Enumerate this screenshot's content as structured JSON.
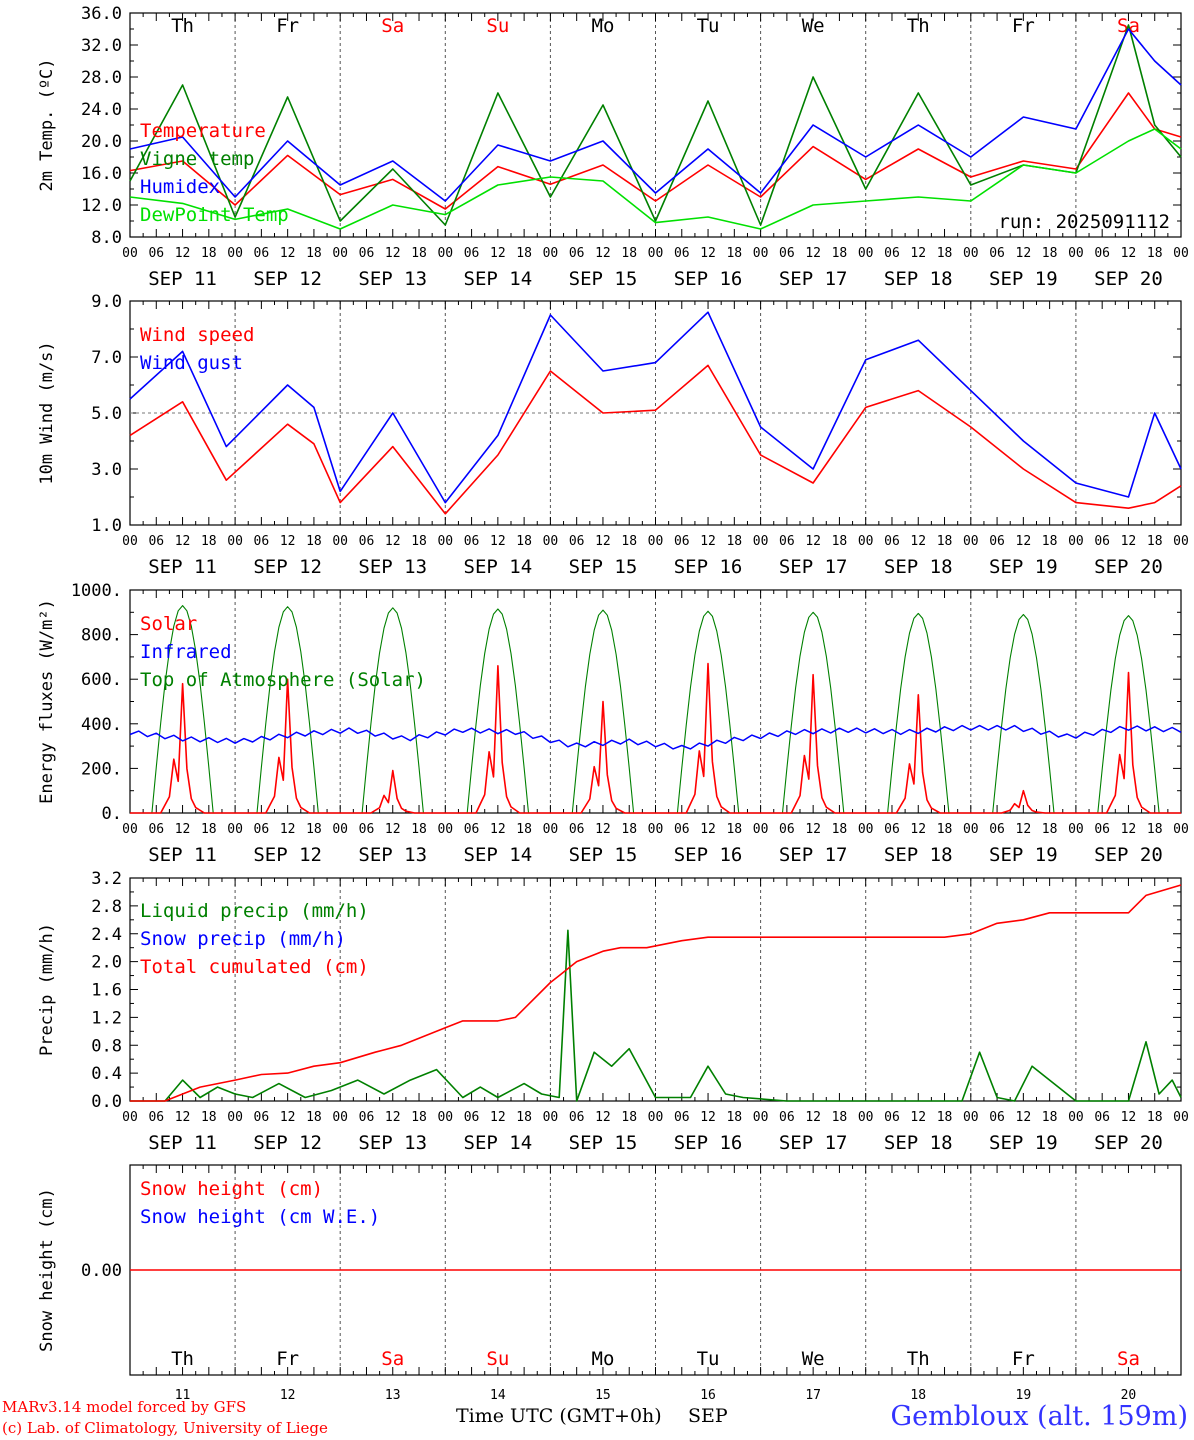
{
  "footer": {
    "model": "MARv3.14 model forced by GFS",
    "credit": "(c) Lab. of Climatology, University of Liege",
    "time_label": "Time UTC (GMT+0h)",
    "month_label": "SEP",
    "station": "Gembloux (alt. 159m)"
  },
  "colors": {
    "red": "#ff0000",
    "green": "#008000",
    "blue": "#0000ff",
    "lightgreen": "#00e000",
    "weekend": "#ff0000",
    "weekday": "#000000"
  },
  "axis": {
    "hour_ticks": [
      "00",
      "06",
      "12",
      "18"
    ],
    "final_hour": "00",
    "dates": [
      "SEP 11",
      "SEP 12",
      "SEP 13",
      "SEP 14",
      "SEP 15",
      "SEP 16",
      "SEP 17",
      "SEP 18",
      "SEP 19",
      "SEP 20"
    ],
    "weekdays": [
      "Th",
      "Fr",
      "Sa",
      "Su",
      "Mo",
      "Tu",
      "We",
      "Th",
      "Fr",
      "Sa"
    ],
    "weekend": [
      false,
      false,
      true,
      true,
      false,
      false,
      false,
      false,
      false,
      true
    ],
    "day_numbers": [
      "11",
      "12",
      "13",
      "14",
      "15",
      "16",
      "17",
      "18",
      "19",
      "20"
    ]
  },
  "chart_data": [
    {
      "type": "line",
      "ylabel": "2m Temp. (ºC)",
      "ylim": [
        8,
        36
      ],
      "yticks": [
        "8.0",
        "12.0",
        "16.0",
        "20.0",
        "24.0",
        "28.0",
        "32.0",
        "36.0"
      ],
      "annotation": "run: 2025091112",
      "x_unit": "hours since SEP 11 00 UTC",
      "x": [
        0,
        12,
        24,
        36,
        48,
        60,
        72,
        84,
        96,
        108,
        120,
        132,
        144,
        156,
        168,
        180,
        192,
        204,
        216,
        228,
        234,
        240
      ],
      "series": [
        {
          "name": "Temperature",
          "color": "#ff0000",
          "values": [
            16.3,
            17.5,
            12.0,
            18.2,
            13.3,
            15.2,
            11.5,
            16.8,
            14.6,
            17.0,
            12.5,
            17.0,
            13.0,
            19.3,
            15.2,
            19.0,
            15.5,
            17.5,
            16.5,
            26.0,
            21.5,
            20.5
          ]
        },
        {
          "name": "Vigne temp",
          "color": "#008000",
          "values": [
            15.0,
            27.0,
            10.5,
            25.5,
            10.0,
            16.5,
            9.5,
            26.0,
            13.0,
            24.5,
            10.0,
            25.0,
            9.5,
            28.0,
            14.0,
            26.0,
            14.5,
            17.0,
            16.0,
            34.5,
            22.0,
            18.0
          ]
        },
        {
          "name": "Humidex",
          "color": "#0000ff",
          "values": [
            19.0,
            20.5,
            13.0,
            20.0,
            14.5,
            17.5,
            12.5,
            19.5,
            17.5,
            20.0,
            13.5,
            19.0,
            13.5,
            22.0,
            18.0,
            22.0,
            18.0,
            23.0,
            21.5,
            34.0,
            30.0,
            27.0
          ]
        },
        {
          "name": "DewPoint Temp",
          "color": "#00e000",
          "values": [
            13.0,
            12.2,
            10.2,
            11.5,
            9.0,
            12.0,
            10.8,
            14.5,
            15.5,
            15.0,
            9.8,
            10.5,
            9.0,
            12.0,
            12.5,
            13.0,
            12.5,
            17.0,
            16.0,
            20.0,
            21.5,
            19.0
          ]
        }
      ]
    },
    {
      "type": "line",
      "ylabel": "10m Wind (m/s)",
      "ylim": [
        1,
        9
      ],
      "yticks": [
        "1.0",
        "3.0",
        "5.0",
        "7.0",
        "9.0"
      ],
      "refline": 5.0,
      "x_unit": "hours since SEP 11 00 UTC",
      "x": [
        0,
        12,
        22,
        36,
        42,
        48,
        60,
        72,
        84,
        96,
        108,
        120,
        132,
        144,
        156,
        168,
        180,
        192,
        204,
        216,
        228,
        234,
        240
      ],
      "series": [
        {
          "name": "Wind speed",
          "color": "#ff0000",
          "values": [
            4.2,
            5.4,
            2.6,
            4.6,
            3.9,
            1.8,
            3.8,
            1.4,
            3.5,
            6.5,
            5.0,
            5.1,
            6.7,
            3.5,
            2.5,
            5.2,
            5.8,
            4.5,
            3.0,
            1.8,
            1.6,
            1.8,
            2.4
          ]
        },
        {
          "name": "Wind gust",
          "color": "#0000ff",
          "values": [
            5.5,
            7.2,
            3.8,
            6.0,
            5.2,
            2.2,
            5.0,
            1.8,
            4.2,
            8.5,
            6.5,
            6.8,
            8.6,
            4.5,
            3.0,
            6.9,
            7.6,
            5.8,
            4.0,
            2.5,
            2.0,
            5.0,
            3.0
          ]
        }
      ]
    },
    {
      "type": "line",
      "ylabel": "Energy fluxes (W/m²)",
      "ylim": [
        0,
        1000
      ],
      "yticks": [
        "0.",
        "200.",
        "400.",
        "600.",
        "800.",
        "1000."
      ],
      "x_unit": "hours since SEP 11 00 UTC",
      "sun_peaks": [
        {
          "toa": 930,
          "solar": 580
        },
        {
          "toa": 925,
          "solar": 600
        },
        {
          "toa": 920,
          "solar": 190
        },
        {
          "toa": 915,
          "solar": 660
        },
        {
          "toa": 910,
          "solar": 500
        },
        {
          "toa": 905,
          "solar": 670
        },
        {
          "toa": 900,
          "solar": 620
        },
        {
          "toa": 895,
          "solar": 530
        },
        {
          "toa": 890,
          "solar": 100
        },
        {
          "toa": 885,
          "solar": 630
        }
      ],
      "series": [
        {
          "name": "Solar",
          "color": "#ff0000"
        },
        {
          "name": "Infrared",
          "color": "#0000ff",
          "values": [
            360,
            330,
            320,
            350,
            370,
            330,
            370,
            360,
            300,
            320,
            290,
            330,
            360,
            370,
            360,
            380,
            380,
            340,
            380,
            370
          ]
        },
        {
          "name": "Top of Atmosphere (Solar)",
          "color": "#008000"
        }
      ]
    },
    {
      "type": "line",
      "ylabel": "Precip (mm/h)",
      "ylim": [
        0,
        3.2
      ],
      "yticks": [
        "0.0",
        "0.4",
        "0.8",
        "1.2",
        "1.6",
        "2.0",
        "2.4",
        "2.8",
        "3.2"
      ],
      "x_unit": "hours since SEP 11 00 UTC",
      "series": [
        {
          "name": "Liquid precip (mm/h)",
          "color": "#008000",
          "x": [
            0,
            8,
            12,
            16,
            20,
            24,
            28,
            34,
            40,
            46,
            52,
            58,
            64,
            70,
            76,
            80,
            84,
            90,
            94,
            98,
            100,
            102,
            106,
            110,
            114,
            120,
            128,
            132,
            136,
            140,
            150,
            190,
            194,
            198,
            202,
            206,
            216,
            224,
            228,
            232,
            235,
            238,
            240
          ],
          "values": [
            0,
            0,
            0.3,
            0.05,
            0.2,
            0.1,
            0.05,
            0.25,
            0.05,
            0.15,
            0.3,
            0.1,
            0.3,
            0.45,
            0.05,
            0.2,
            0.05,
            0.25,
            0.1,
            0.05,
            2.45,
            0,
            0.7,
            0.5,
            0.75,
            0.05,
            0.05,
            0.5,
            0.1,
            0.05,
            0,
            0,
            0.7,
            0.05,
            0,
            0.5,
            0,
            0,
            0,
            0.85,
            0.1,
            0.3,
            0.05
          ]
        },
        {
          "name": "Snow precip (mm/h)",
          "color": "#0000ff",
          "values": []
        },
        {
          "name": "Total cumulated (cm)",
          "color": "#ff0000",
          "x": [
            0,
            8,
            12,
            16,
            24,
            30,
            36,
            42,
            48,
            56,
            62,
            68,
            72,
            76,
            84,
            88,
            96,
            98,
            102,
            106,
            108,
            112,
            118,
            126,
            132,
            136,
            156,
            168,
            186,
            192,
            198,
            204,
            210,
            228,
            232,
            240
          ],
          "values": [
            0,
            0,
            0.1,
            0.2,
            0.3,
            0.38,
            0.4,
            0.5,
            0.55,
            0.7,
            0.8,
            0.95,
            1.05,
            1.15,
            1.15,
            1.2,
            1.7,
            1.8,
            2.0,
            2.1,
            2.15,
            2.2,
            2.2,
            2.3,
            2.35,
            2.35,
            2.35,
            2.35,
            2.35,
            2.4,
            2.55,
            2.6,
            2.7,
            2.7,
            2.95,
            3.1
          ]
        }
      ]
    },
    {
      "type": "line",
      "ylabel": "Snow height (cm)",
      "ytick": "0.00",
      "x_unit": "hours since SEP 11 00 UTC",
      "series": [
        {
          "name": "Snow height (cm)",
          "color": "#ff0000",
          "values": [
            0,
            0
          ]
        },
        {
          "name": "Snow height (cm W.E.)",
          "color": "#0000ff",
          "values": [
            0,
            0
          ]
        }
      ]
    }
  ]
}
